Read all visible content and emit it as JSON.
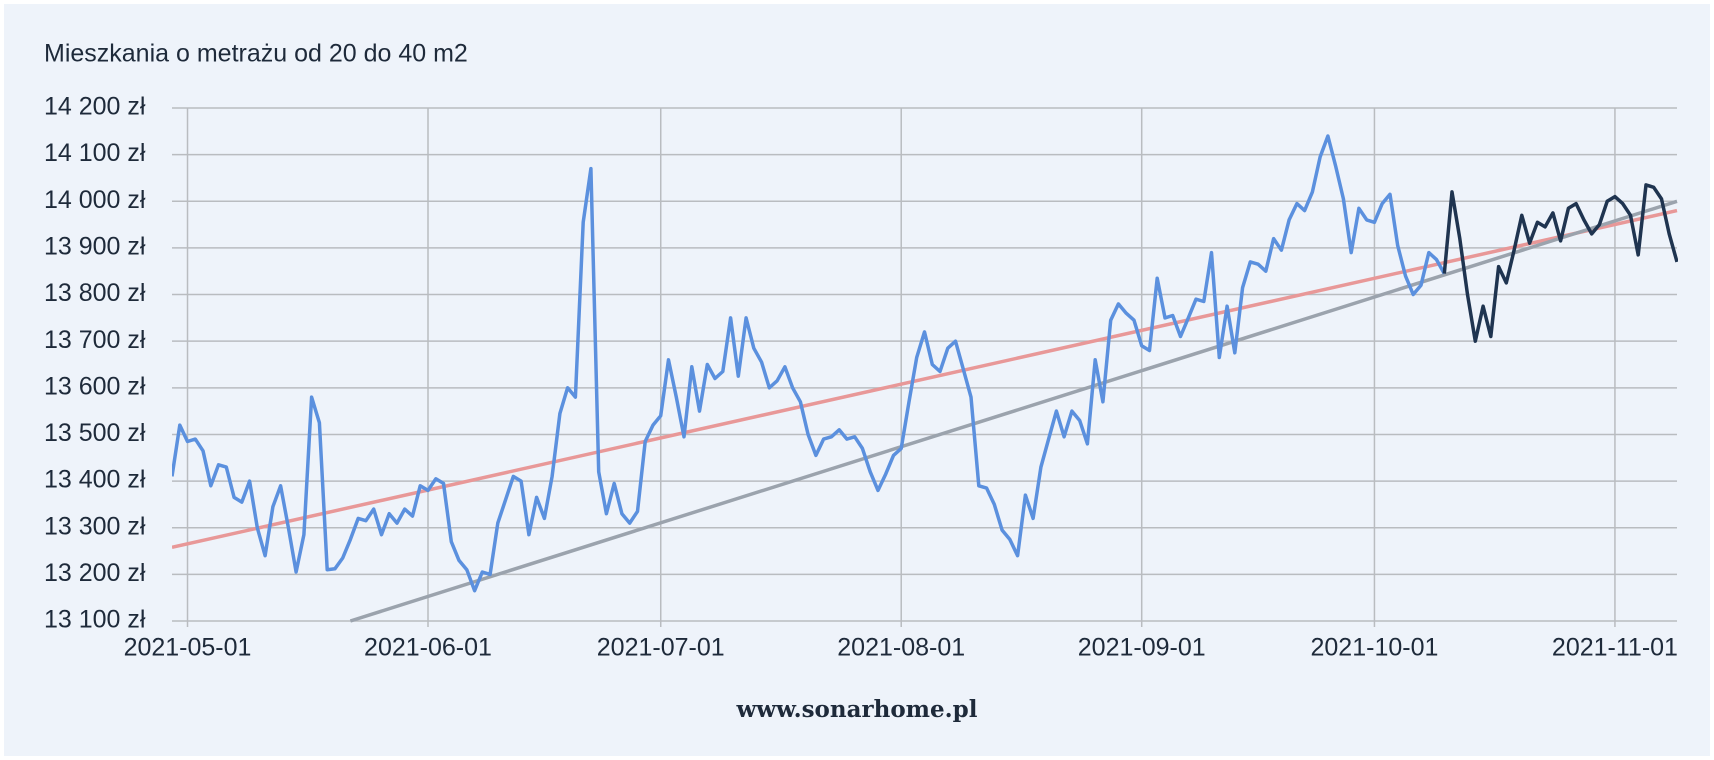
{
  "chart_data": {
    "type": "line",
    "title": "Mieszkania o metrażu od 20 do 40 m2",
    "footer": "www.sonarhome.pl",
    "xlim": [
      "2021-04-29",
      "2021-11-09"
    ],
    "xticks": [
      "2021-05-01",
      "2021-06-01",
      "2021-07-01",
      "2021-08-01",
      "2021-09-01",
      "2021-10-01",
      "2021-11-01"
    ],
    "ylim": [
      13100,
      14200
    ],
    "yticks": [
      {
        "value": 13100,
        "label": "13 100 zł"
      },
      {
        "value": 13200,
        "label": "13 200 zł"
      },
      {
        "value": 13300,
        "label": "13 300 zł"
      },
      {
        "value": 13400,
        "label": "13 400 zł"
      },
      {
        "value": 13500,
        "label": "13 500 zł"
      },
      {
        "value": 13600,
        "label": "13 600 zł"
      },
      {
        "value": 13700,
        "label": "13 700 zł"
      },
      {
        "value": 13800,
        "label": "13 800 zł"
      },
      {
        "value": 13900,
        "label": "13 900 zł"
      },
      {
        "value": 14000,
        "label": "14 000 zł"
      },
      {
        "value": 14100,
        "label": "14 100 zł"
      },
      {
        "value": 14200,
        "label": "14 200 zł"
      }
    ],
    "grid": true,
    "series": [
      {
        "color": "#e89898",
        "x": [
          "2021-04-29",
          "2021-11-09"
        ],
        "values": [
          13258,
          13980
        ]
      },
      {
        "color": "#9ba3ad",
        "x": [
          "2021-05-22",
          "2021-11-09"
        ],
        "values": [
          13100,
          14000
        ]
      },
      {
        "color": "#5b90de",
        "x": [
          "2021-04-29",
          "2021-04-30",
          "2021-05-01",
          "2021-05-02",
          "2021-05-03",
          "2021-05-04",
          "2021-05-05",
          "2021-05-06",
          "2021-05-07",
          "2021-05-08",
          "2021-05-09",
          "2021-05-10",
          "2021-05-11",
          "2021-05-12",
          "2021-05-13",
          "2021-05-14",
          "2021-05-15",
          "2021-05-16",
          "2021-05-17",
          "2021-05-18",
          "2021-05-19",
          "2021-05-20",
          "2021-05-21",
          "2021-05-22",
          "2021-05-23",
          "2021-05-24",
          "2021-05-25",
          "2021-05-26",
          "2021-05-27",
          "2021-05-28",
          "2021-05-29",
          "2021-05-30",
          "2021-05-31",
          "2021-06-01",
          "2021-06-02",
          "2021-06-03",
          "2021-06-04",
          "2021-06-05",
          "2021-06-06",
          "2021-06-07",
          "2021-06-08",
          "2021-06-09",
          "2021-06-10",
          "2021-06-11",
          "2021-06-12",
          "2021-06-13",
          "2021-06-14",
          "2021-06-15",
          "2021-06-16",
          "2021-06-17",
          "2021-06-18",
          "2021-06-19",
          "2021-06-20",
          "2021-06-21",
          "2021-06-22",
          "2021-06-23",
          "2021-06-24",
          "2021-06-25",
          "2021-06-26",
          "2021-06-27",
          "2021-06-28",
          "2021-06-29",
          "2021-06-30",
          "2021-07-01",
          "2021-07-02",
          "2021-07-03",
          "2021-07-04",
          "2021-07-05",
          "2021-07-06",
          "2021-07-07",
          "2021-07-08",
          "2021-07-09",
          "2021-07-10",
          "2021-07-11",
          "2021-07-12",
          "2021-07-13",
          "2021-07-14",
          "2021-07-15",
          "2021-07-16",
          "2021-07-17",
          "2021-07-18",
          "2021-07-19",
          "2021-07-20",
          "2021-07-21",
          "2021-07-22",
          "2021-07-23",
          "2021-07-24",
          "2021-07-25",
          "2021-07-26",
          "2021-07-27",
          "2021-07-28",
          "2021-07-29",
          "2021-07-30",
          "2021-07-31",
          "2021-08-01",
          "2021-08-02",
          "2021-08-03",
          "2021-08-04",
          "2021-08-05",
          "2021-08-06",
          "2021-08-07",
          "2021-08-08",
          "2021-08-09",
          "2021-08-10",
          "2021-08-11",
          "2021-08-12",
          "2021-08-13",
          "2021-08-14",
          "2021-08-15",
          "2021-08-16",
          "2021-08-17",
          "2021-08-18",
          "2021-08-19",
          "2021-08-20",
          "2021-08-21",
          "2021-08-22",
          "2021-08-23",
          "2021-08-24",
          "2021-08-25",
          "2021-08-26",
          "2021-08-27",
          "2021-08-28",
          "2021-08-29",
          "2021-08-30",
          "2021-08-31",
          "2021-09-01",
          "2021-09-02",
          "2021-09-03",
          "2021-09-04",
          "2021-09-05",
          "2021-09-06",
          "2021-09-07",
          "2021-09-08",
          "2021-09-09",
          "2021-09-10",
          "2021-09-11",
          "2021-09-12",
          "2021-09-13",
          "2021-09-14",
          "2021-09-15",
          "2021-09-16",
          "2021-09-17",
          "2021-09-18",
          "2021-09-19",
          "2021-09-20",
          "2021-09-21",
          "2021-09-22",
          "2021-09-23",
          "2021-09-24",
          "2021-09-25",
          "2021-09-26",
          "2021-09-27",
          "2021-09-28",
          "2021-09-29",
          "2021-09-30",
          "2021-10-01",
          "2021-10-02",
          "2021-10-03",
          "2021-10-04",
          "2021-10-05",
          "2021-10-06",
          "2021-10-07",
          "2021-10-08",
          "2021-10-09",
          "2021-10-10"
        ],
        "values": [
          13410,
          13520,
          13485,
          13490,
          13465,
          13390,
          13435,
          13430,
          13365,
          13355,
          13400,
          13300,
          13240,
          13345,
          13390,
          13300,
          13205,
          13285,
          13580,
          13525,
          13210,
          13212,
          13235,
          13275,
          13320,
          13315,
          13340,
          13285,
          13330,
          13310,
          13340,
          13325,
          13390,
          13380,
          13405,
          13395,
          13270,
          13230,
          13210,
          13165,
          13205,
          13200,
          13310,
          13360,
          13410,
          13400,
          13285,
          13365,
          13320,
          13410,
          13545,
          13600,
          13580,
          13955,
          14070,
          13420,
          13330,
          13395,
          13330,
          13310,
          13335,
          13485,
          13520,
          13540,
          13660,
          13580,
          13495,
          13645,
          13550,
          13650,
          13620,
          13635,
          13750,
          13625,
          13750,
          13685,
          13655,
          13600,
          13615,
          13645,
          13600,
          13570,
          13500,
          13455,
          13490,
          13495,
          13510,
          13490,
          13495,
          13470,
          13420,
          13380,
          13415,
          13455,
          13470,
          13570,
          13665,
          13720,
          13650,
          13635,
          13685,
          13700,
          13640,
          13580,
          13390,
          13385,
          13350,
          13295,
          13275,
          13240,
          13370,
          13320,
          13430,
          13490,
          13550,
          13495,
          13550,
          13530,
          13480,
          13660,
          13570,
          13745,
          13780,
          13760,
          13745,
          13690,
          13680,
          13835,
          13750,
          13755,
          13710,
          13750,
          13790,
          13785,
          13890,
          13665,
          13775,
          13675,
          13815,
          13870,
          13865,
          13850,
          13920,
          13895,
          13960,
          13995,
          13980,
          14020,
          14095,
          14140,
          14075,
          14005,
          13890,
          13985,
          13960,
          13955,
          13995,
          14015,
          13905,
          13840,
          13800,
          13820,
          13890,
          13875,
          13845
        ]
      },
      {
        "color": "#1f3450",
        "x": [
          "2021-10-10",
          "2021-10-11",
          "2021-10-12",
          "2021-10-13",
          "2021-10-14",
          "2021-10-15",
          "2021-10-16",
          "2021-10-17",
          "2021-10-18",
          "2021-10-19",
          "2021-10-20",
          "2021-10-21",
          "2021-10-22",
          "2021-10-23",
          "2021-10-24",
          "2021-10-25",
          "2021-10-26",
          "2021-10-27",
          "2021-10-28",
          "2021-10-29",
          "2021-10-30",
          "2021-10-31",
          "2021-11-01",
          "2021-11-02",
          "2021-11-03",
          "2021-11-04",
          "2021-11-05",
          "2021-11-06",
          "2021-11-07",
          "2021-11-08",
          "2021-11-09"
        ],
        "values": [
          13845,
          14020,
          13920,
          13800,
          13700,
          13775,
          13710,
          13860,
          13825,
          13895,
          13970,
          13910,
          13955,
          13945,
          13975,
          13915,
          13985,
          13995,
          13960,
          13930,
          13950,
          14000,
          14010,
          13995,
          13970,
          13885,
          14035,
          14030,
          14005,
          13930,
          13870
        ]
      }
    ]
  }
}
